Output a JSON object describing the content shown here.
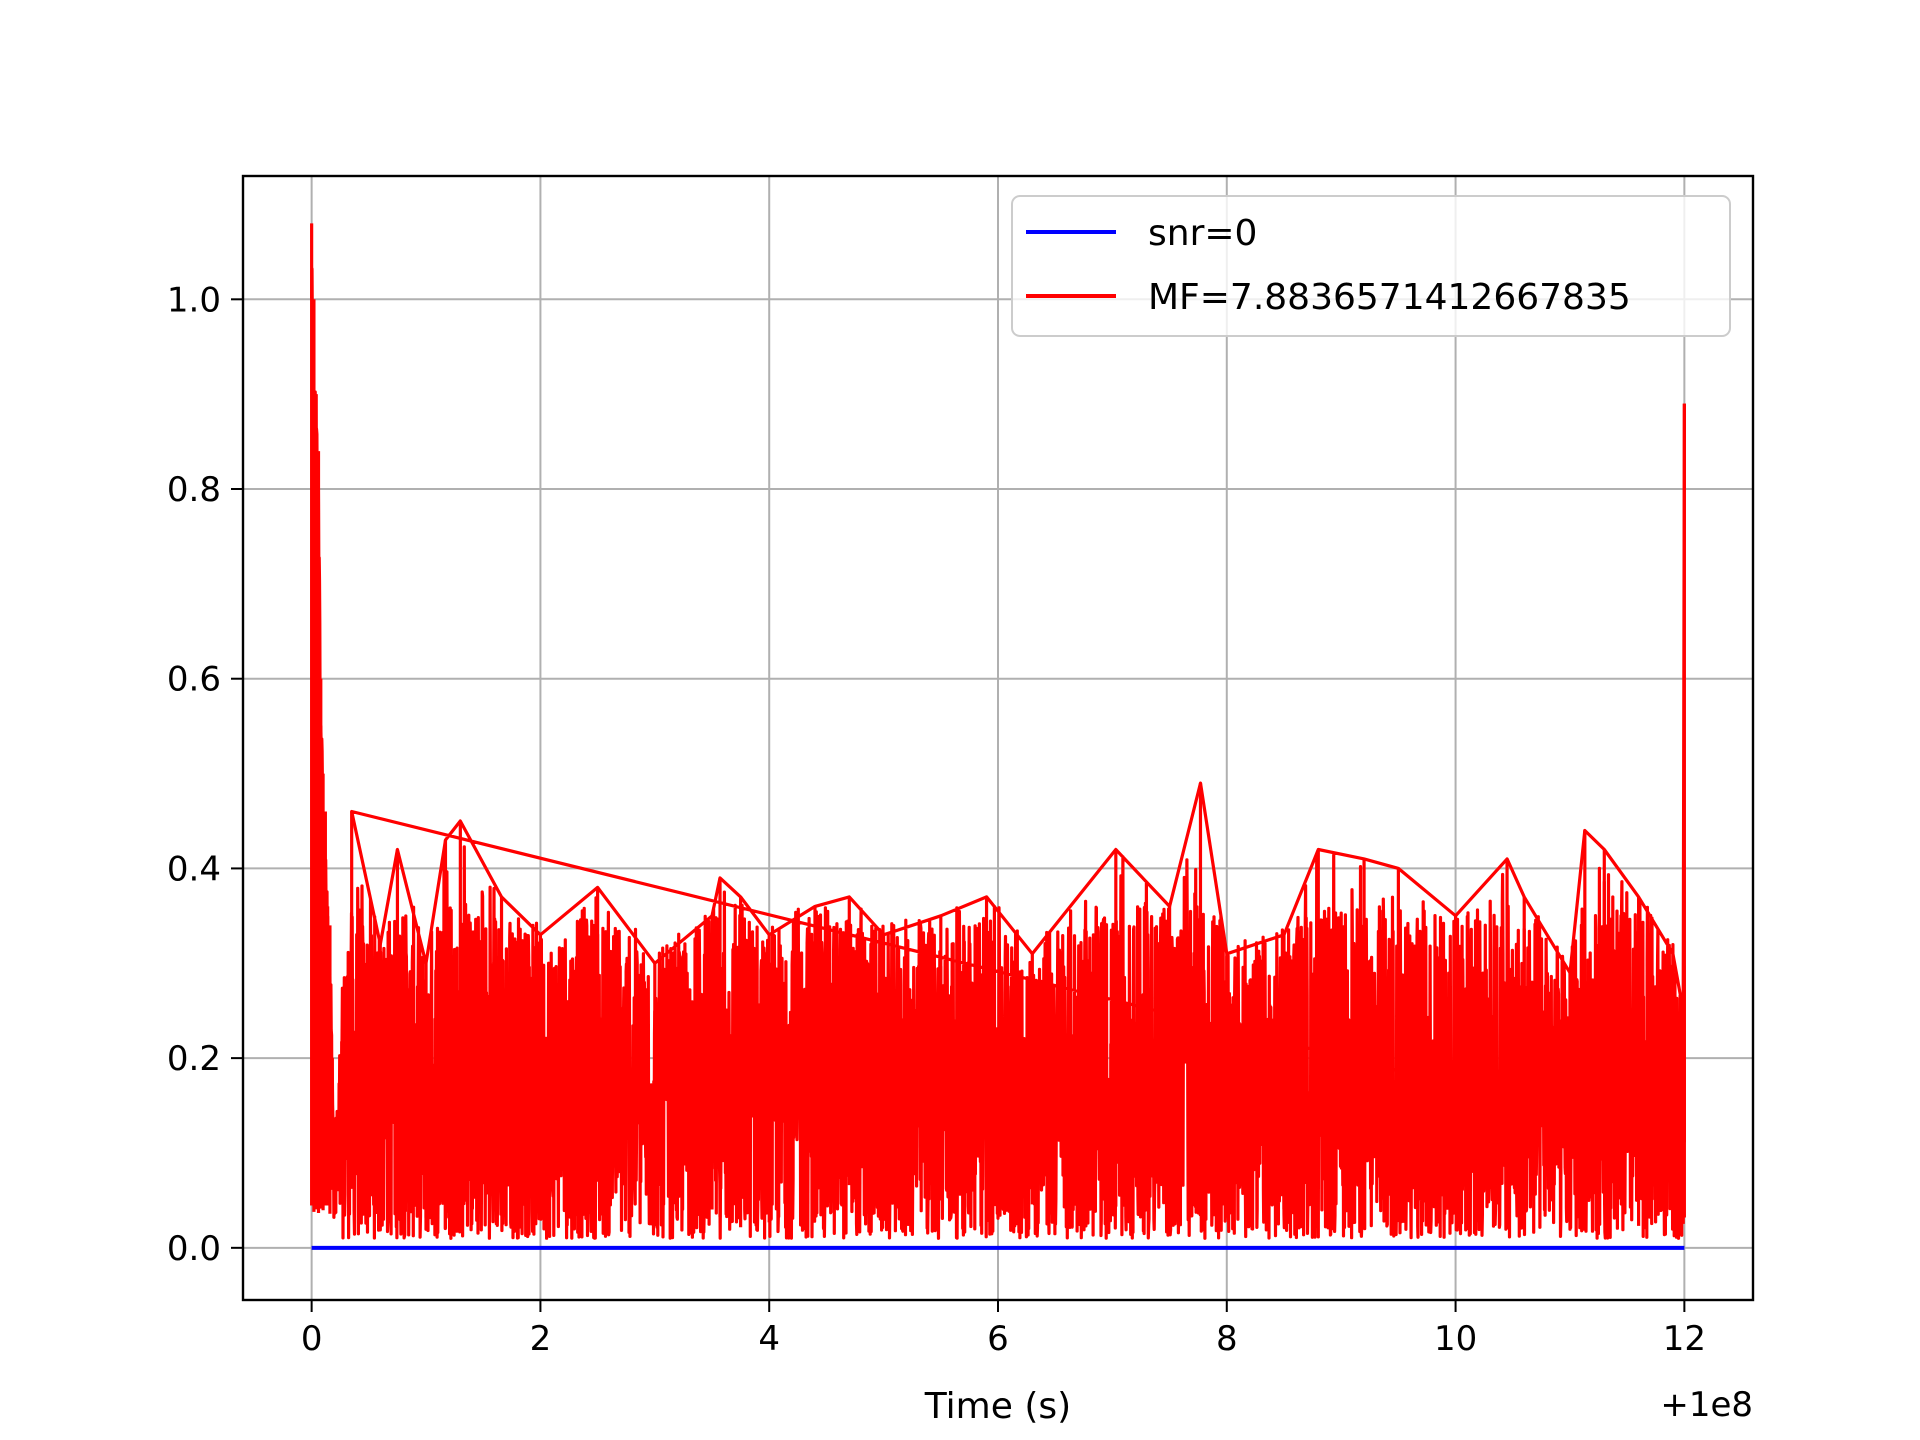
{
  "chart_data": {
    "type": "line",
    "xlabel": "Time (s)",
    "ylabel": "",
    "x_offset_text": "+1e8",
    "xlim": [
      -0.6,
      12.6
    ],
    "ylim": [
      -0.055,
      1.13
    ],
    "xticks": [
      0,
      2,
      4,
      6,
      8,
      10,
      12
    ],
    "xtick_labels": [
      "0",
      "2",
      "4",
      "6",
      "8",
      "10",
      "12"
    ],
    "yticks": [
      0.0,
      0.2,
      0.4,
      0.6,
      0.8,
      1.0
    ],
    "ytick_labels": [
      "0.0",
      "0.2",
      "0.4",
      "0.6",
      "0.8",
      "1.0"
    ],
    "grid": true,
    "legend_position": "top-right",
    "series": [
      {
        "name": "snr=0",
        "color": "#0000ff",
        "x": [
          0,
          12
        ],
        "y": [
          0.0,
          0.0
        ]
      },
      {
        "name": "MF=7.8836571412667835",
        "color": "#ff0000",
        "x": [
          0.0,
          0.02,
          0.04,
          0.06,
          0.08,
          0.1,
          0.12,
          0.14,
          0.16,
          0.18,
          0.2,
          0.35,
          0.6,
          0.75,
          1.0,
          1.17,
          1.3,
          1.66,
          2.0,
          2.5,
          3.0,
          3.5,
          3.57,
          3.75,
          4.0,
          4.4,
          4.7,
          5.0,
          5.5,
          5.9,
          6.3,
          7.03,
          7.5,
          7.77,
          8.0,
          8.5,
          8.8,
          9.2,
          9.5,
          10.0,
          10.45,
          10.6,
          11.0,
          11.13,
          11.3,
          11.6,
          11.9,
          11.99,
          12.0
        ],
        "y": [
          1.08,
          1.0,
          0.9,
          0.84,
          0.6,
          0.5,
          0.46,
          0.36,
          0.34,
          0.2,
          0.1,
          0.46,
          0.32,
          0.42,
          0.3,
          0.43,
          0.45,
          0.37,
          0.33,
          0.38,
          0.3,
          0.35,
          0.39,
          0.37,
          0.33,
          0.36,
          0.37,
          0.33,
          0.35,
          0.37,
          0.31,
          0.42,
          0.36,
          0.49,
          0.31,
          0.33,
          0.42,
          0.41,
          0.4,
          0.35,
          0.41,
          0.37,
          0.29,
          0.44,
          0.42,
          0.37,
          0.31,
          0.25,
          0.89
        ],
        "band_y_range": [
          0.0,
          0.35
        ]
      }
    ]
  }
}
